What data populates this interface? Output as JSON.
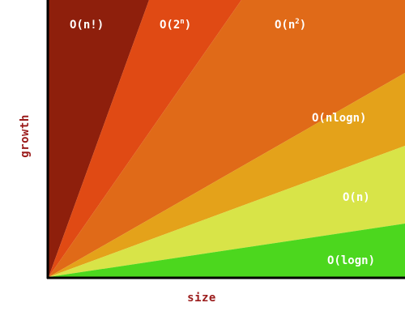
{
  "axes": {
    "y_label": "growth",
    "x_label": "size"
  },
  "regions": [
    {
      "key": "factorial",
      "label": "O(n!)",
      "color": "#8e1f0c"
    },
    {
      "key": "exponential",
      "base": "O(2",
      "sup": "n",
      "tail": ")",
      "color": "#e04a14"
    },
    {
      "key": "quadratic",
      "base": "O(n",
      "sup": "2",
      "tail": ")",
      "color": "#e06a18"
    },
    {
      "key": "linearithmic",
      "label": "O(nlogn)",
      "color": "#e4a21a"
    },
    {
      "key": "linear",
      "label": "O(n)",
      "color": "#d8e448"
    },
    {
      "key": "logarithmic",
      "label": "O(logn)",
      "color": "#4cd71e"
    }
  ],
  "axis_color": "#000000"
}
